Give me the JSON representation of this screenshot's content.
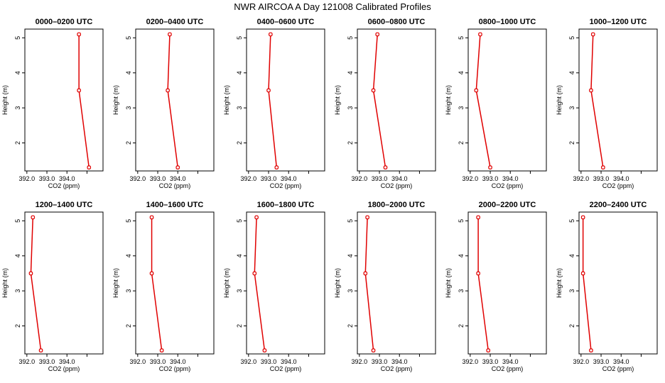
{
  "title": "NWR AIRCOA A  Day 121008  Calibrated Profiles",
  "chart_data": {
    "type": "line",
    "xlabel": "CO2 (ppm)",
    "ylabel": "Height (m)",
    "xlim": [
      391.9,
      395.8
    ],
    "ylim": [
      1.2,
      5.25
    ],
    "xticks": [
      392,
      393,
      394,
      395
    ],
    "xtick_labels": [
      "392.0",
      "393.0",
      "394.0",
      ""
    ],
    "yticks": [
      2,
      3,
      4,
      5
    ],
    "ytick_labels": [
      "2",
      "3",
      "4",
      "5"
    ],
    "line_color": "#e00000",
    "panels": [
      {
        "title": "0000–0200 UTC",
        "x": [
          394.6,
          394.6,
          395.1
        ],
        "y": [
          5.1,
          3.5,
          1.3
        ]
      },
      {
        "title": "0200–0400 UTC",
        "x": [
          393.6,
          393.5,
          394.0
        ],
        "y": [
          5.1,
          3.5,
          1.3
        ]
      },
      {
        "title": "0400–0600 UTC",
        "x": [
          393.1,
          393.0,
          393.4
        ],
        "y": [
          5.1,
          3.5,
          1.3
        ]
      },
      {
        "title": "0600–0800 UTC",
        "x": [
          392.9,
          392.7,
          393.3
        ],
        "y": [
          5.1,
          3.5,
          1.3
        ]
      },
      {
        "title": "0800–1000 UTC",
        "x": [
          392.5,
          392.3,
          393.0
        ],
        "y": [
          5.1,
          3.5,
          1.3
        ]
      },
      {
        "title": "1000–1200 UTC",
        "x": [
          392.6,
          392.5,
          393.1
        ],
        "y": [
          5.1,
          3.5,
          1.3
        ]
      },
      {
        "title": "1200–1400 UTC",
        "x": [
          392.3,
          392.2,
          392.7
        ],
        "y": [
          5.1,
          3.5,
          1.3
        ]
      },
      {
        "title": "1400–1600 UTC",
        "x": [
          392.7,
          392.7,
          393.2
        ],
        "y": [
          5.1,
          3.5,
          1.3
        ]
      },
      {
        "title": "1600–1800 UTC",
        "x": [
          392.4,
          392.3,
          392.8
        ],
        "y": [
          5.1,
          3.5,
          1.3
        ]
      },
      {
        "title": "1800–2000 UTC",
        "x": [
          392.4,
          392.3,
          392.7
        ],
        "y": [
          5.1,
          3.5,
          1.3
        ]
      },
      {
        "title": "2000–2200 UTC",
        "x": [
          392.4,
          392.4,
          392.9
        ],
        "y": [
          5.1,
          3.5,
          1.3
        ]
      },
      {
        "title": "2200–2400 UTC",
        "x": [
          392.1,
          392.1,
          392.5
        ],
        "y": [
          5.1,
          3.5,
          1.3
        ]
      }
    ]
  }
}
